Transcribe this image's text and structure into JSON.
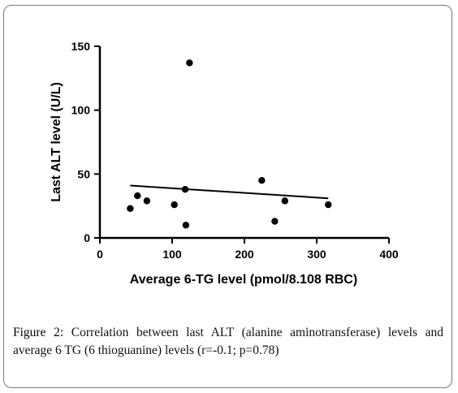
{
  "chart_data": {
    "type": "scatter",
    "title": "",
    "xlabel": "Average 6-TG level (pmol/8.108 RBC)",
    "ylabel": "Last ALT level (U/L)",
    "xlim": [
      0,
      400
    ],
    "ylim": [
      0,
      150
    ],
    "x_ticks": [
      "0",
      "100",
      "200",
      "300",
      "400"
    ],
    "y_ticks": [
      "0",
      "50",
      "100",
      "150"
    ],
    "grid": false,
    "points": [
      {
        "x": 42,
        "y": 23
      },
      {
        "x": 52,
        "y": 33
      },
      {
        "x": 65,
        "y": 29
      },
      {
        "x": 103,
        "y": 26
      },
      {
        "x": 118,
        "y": 38
      },
      {
        "x": 119,
        "y": 10
      },
      {
        "x": 124,
        "y": 137
      },
      {
        "x": 224,
        "y": 45
      },
      {
        "x": 242,
        "y": 13
      },
      {
        "x": 256,
        "y": 29
      },
      {
        "x": 316,
        "y": 26
      }
    ],
    "trendline": {
      "x": [
        42,
        316
      ],
      "y": [
        41,
        31
      ]
    }
  },
  "caption": {
    "label": "Figure 2:",
    "text": " Correlation between last ALT (alanine aminotransferase) levels and average 6 TG (6 thioguanine) levels (r=-0.1; p=0.78)"
  }
}
